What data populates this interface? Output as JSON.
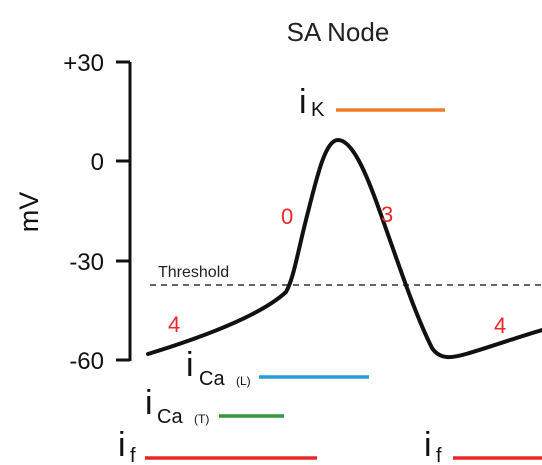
{
  "title": "SA Node",
  "y_axis": {
    "label": "mV",
    "ticks": [
      "+30",
      "0",
      "-30",
      "-60"
    ]
  },
  "threshold_label": "Threshold",
  "phases": {
    "phase4_left": "4",
    "phase0": "0",
    "phase3": "3",
    "phase4_right": "4"
  },
  "currents": {
    "iK": {
      "main": "i",
      "sub": "K",
      "color": "#f07a28"
    },
    "iCaL": {
      "main": "i",
      "sub": "Ca",
      "subsub": "(L)",
      "color": "#2a9ad8"
    },
    "iCaT": {
      "main": "i",
      "sub": "Ca",
      "subsub": "(T)",
      "color": "#2c9a3c"
    },
    "if_left": {
      "main": "i",
      "sub": "f",
      "color": "#e8282b"
    },
    "if_right": {
      "main": "i",
      "sub": "f",
      "color": "#e8282b"
    }
  },
  "colors": {
    "trace": "#111111",
    "phase_numbers": "#e8282b",
    "threshold_line": "#333333"
  }
}
